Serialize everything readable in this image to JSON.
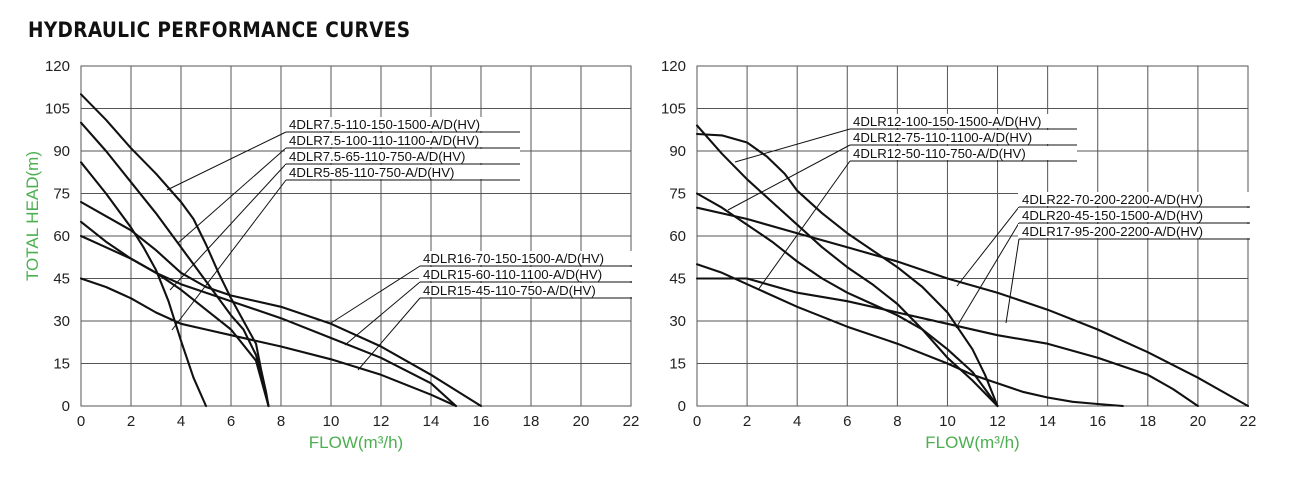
{
  "title": "HYDRAULIC PERFORMANCE CURVES",
  "colors": {
    "axis_label": "#4caf50",
    "curve": "#111111",
    "grid": "#555555"
  },
  "chart_data": [
    {
      "type": "line",
      "title": "",
      "xlabel": "FLOW(m³/h)",
      "ylabel": "TOTAL HEAD(m)",
      "xlim": [
        0,
        22
      ],
      "ylim": [
        0,
        120
      ],
      "x_ticks": [
        0,
        2,
        4,
        6,
        8,
        10,
        12,
        14,
        16,
        18,
        20,
        22
      ],
      "y_ticks": [
        0,
        15,
        30,
        45,
        60,
        75,
        90,
        105,
        120
      ],
      "grid": true,
      "series": [
        {
          "name": "4DLR7.5-110-150-1500-A/D(HV)",
          "points": [
            [
              0,
              110
            ],
            [
              1,
              101
            ],
            [
              2,
              91
            ],
            [
              3,
              82
            ],
            [
              4,
              72
            ],
            [
              4.5,
              66
            ],
            [
              5,
              57
            ],
            [
              5.5,
              47
            ],
            [
              6,
              38
            ],
            [
              6.5,
              30
            ],
            [
              7,
              22
            ],
            [
              7.2,
              13
            ],
            [
              7.4,
              5
            ],
            [
              7.5,
              0
            ]
          ]
        },
        {
          "name": "4DLR7.5-100-110-1100-A/D(HV)",
          "points": [
            [
              0,
              100
            ],
            [
              1,
              90
            ],
            [
              2,
              79
            ],
            [
              3,
              68
            ],
            [
              3.5,
              62
            ],
            [
              4,
              56
            ],
            [
              4.5,
              50
            ],
            [
              5,
              44
            ],
            [
              5.5,
              38
            ],
            [
              6,
              32
            ],
            [
              6.5,
              27
            ],
            [
              7,
              18
            ],
            [
              7.3,
              8
            ],
            [
              7.5,
              0
            ]
          ]
        },
        {
          "name": "4DLR7.5-65-110-750-A/D(HV)",
          "points": [
            [
              0,
              86
            ],
            [
              1,
              75
            ],
            [
              2,
              63
            ],
            [
              2.5,
              56
            ],
            [
              3,
              48
            ],
            [
              3.5,
              37
            ],
            [
              4,
              23
            ],
            [
              4.5,
              10
            ],
            [
              5,
              0
            ]
          ]
        },
        {
          "name": "4DLR5-85-110-750-A/D(HV)",
          "points": [
            [
              0,
              65
            ],
            [
              1,
              58
            ],
            [
              2,
              52
            ],
            [
              3,
              47
            ],
            [
              4,
              41
            ],
            [
              5,
              34
            ],
            [
              6,
              27
            ],
            [
              7,
              16
            ],
            [
              7.5,
              0
            ]
          ]
        },
        {
          "name": "4DLR16-70-150-1500-A/D(HV)",
          "points": [
            [
              0,
              72
            ],
            [
              1,
              67
            ],
            [
              2,
              62
            ],
            [
              3,
              55
            ],
            [
              4,
              47
            ],
            [
              5,
              42
            ],
            [
              6,
              39
            ],
            [
              8,
              35
            ],
            [
              10,
              29
            ],
            [
              12,
              21
            ],
            [
              14,
              11
            ],
            [
              16,
              0
            ]
          ]
        },
        {
          "name": "4DLR15-60-110-1100-A/D(HV)",
          "points": [
            [
              0,
              60
            ],
            [
              1,
              56
            ],
            [
              2,
              52
            ],
            [
              3,
              47
            ],
            [
              4,
              43
            ],
            [
              5,
              40
            ],
            [
              6,
              37
            ],
            [
              8,
              31
            ],
            [
              10,
              24
            ],
            [
              12,
              17
            ],
            [
              14,
              8
            ],
            [
              15,
              0
            ]
          ]
        },
        {
          "name": "4DLR15-45-110-750-A/D(HV)",
          "points": [
            [
              0,
              45
            ],
            [
              1,
              42
            ],
            [
              2,
              38
            ],
            [
              3,
              33
            ],
            [
              4,
              29
            ],
            [
              5,
              27
            ],
            [
              6,
              25
            ],
            [
              8,
              21
            ],
            [
              10,
              16.5
            ],
            [
              12,
              11
            ],
            [
              14,
              4
            ],
            [
              15,
              0
            ]
          ]
        }
      ]
    },
    {
      "type": "line",
      "title": "",
      "xlabel": "FLOW(m³/h)",
      "ylabel": "",
      "xlim": [
        0,
        22
      ],
      "ylim": [
        0,
        120
      ],
      "x_ticks": [
        0,
        2,
        4,
        6,
        8,
        10,
        12,
        14,
        16,
        18,
        20,
        22
      ],
      "y_ticks": [
        0,
        15,
        30,
        45,
        60,
        75,
        90,
        105,
        120
      ],
      "grid": true,
      "series": [
        {
          "name": "4DLR12-100-150-1500-A/D(HV)",
          "points": [
            [
              0,
              96
            ],
            [
              1,
              95.5
            ],
            [
              2,
              93
            ],
            [
              2.8,
              88
            ],
            [
              3.5,
              82
            ],
            [
              4,
              76
            ],
            [
              5,
              68
            ],
            [
              6,
              61
            ],
            [
              7,
              55
            ],
            [
              8,
              49
            ],
            [
              9,
              42
            ],
            [
              10,
              33
            ],
            [
              11,
              20
            ],
            [
              11.5,
              11
            ],
            [
              12,
              0
            ]
          ]
        },
        {
          "name": "4DLR12-75-110-1100-A/D(HV)",
          "points": [
            [
              0,
              99
            ],
            [
              1,
              89
            ],
            [
              2,
              80
            ],
            [
              3,
              72
            ],
            [
              4,
              64
            ],
            [
              5,
              56
            ],
            [
              6,
              49
            ],
            [
              7,
              43
            ],
            [
              8,
              36
            ],
            [
              9,
              27
            ],
            [
              10,
              17
            ],
            [
              11,
              9
            ],
            [
              12,
              0
            ]
          ]
        },
        {
          "name": "4DLR12-50-110-750-A/D(HV)",
          "points": [
            [
              0,
              75
            ],
            [
              1,
              70
            ],
            [
              2,
              64
            ],
            [
              3,
              58
            ],
            [
              4,
              51
            ],
            [
              5,
              45
            ],
            [
              6,
              40
            ],
            [
              7,
              36
            ],
            [
              8,
              32
            ],
            [
              9,
              27
            ],
            [
              10,
              20
            ],
            [
              11,
              12
            ],
            [
              12,
              0
            ]
          ]
        },
        {
          "name": "4DLR22-70-200-2200-A/D(HV)",
          "points": [
            [
              0,
              70
            ],
            [
              2,
              66
            ],
            [
              4,
              61
            ],
            [
              6,
              56
            ],
            [
              8,
              51
            ],
            [
              10,
              45
            ],
            [
              12,
              40
            ],
            [
              14,
              34
            ],
            [
              16,
              27
            ],
            [
              18,
              19
            ],
            [
              20,
              10
            ],
            [
              22,
              0
            ]
          ]
        },
        {
          "name": "4DLR20-45-150-1500-A/D(HV)",
          "points": [
            [
              0,
              45
            ],
            [
              2,
              45
            ],
            [
              4,
              40
            ],
            [
              6,
              37
            ],
            [
              8,
              33
            ],
            [
              10,
              29
            ],
            [
              12,
              25
            ],
            [
              14,
              22
            ],
            [
              16,
              17
            ],
            [
              18,
              11
            ],
            [
              19,
              6
            ],
            [
              20,
              0
            ]
          ]
        },
        {
          "name": "4DLR17-95-200-2200-A/D(HV)",
          "points": [
            [
              0,
              50
            ],
            [
              1,
              47
            ],
            [
              2,
              43
            ],
            [
              4,
              35
            ],
            [
              6,
              28
            ],
            [
              8,
              22
            ],
            [
              10,
              15
            ],
            [
              11,
              11
            ],
            [
              12,
              8
            ],
            [
              13,
              5
            ],
            [
              14,
              3
            ],
            [
              15,
              1.5
            ],
            [
              16,
              0.7
            ],
            [
              17,
              0
            ]
          ]
        }
      ]
    }
  ]
}
